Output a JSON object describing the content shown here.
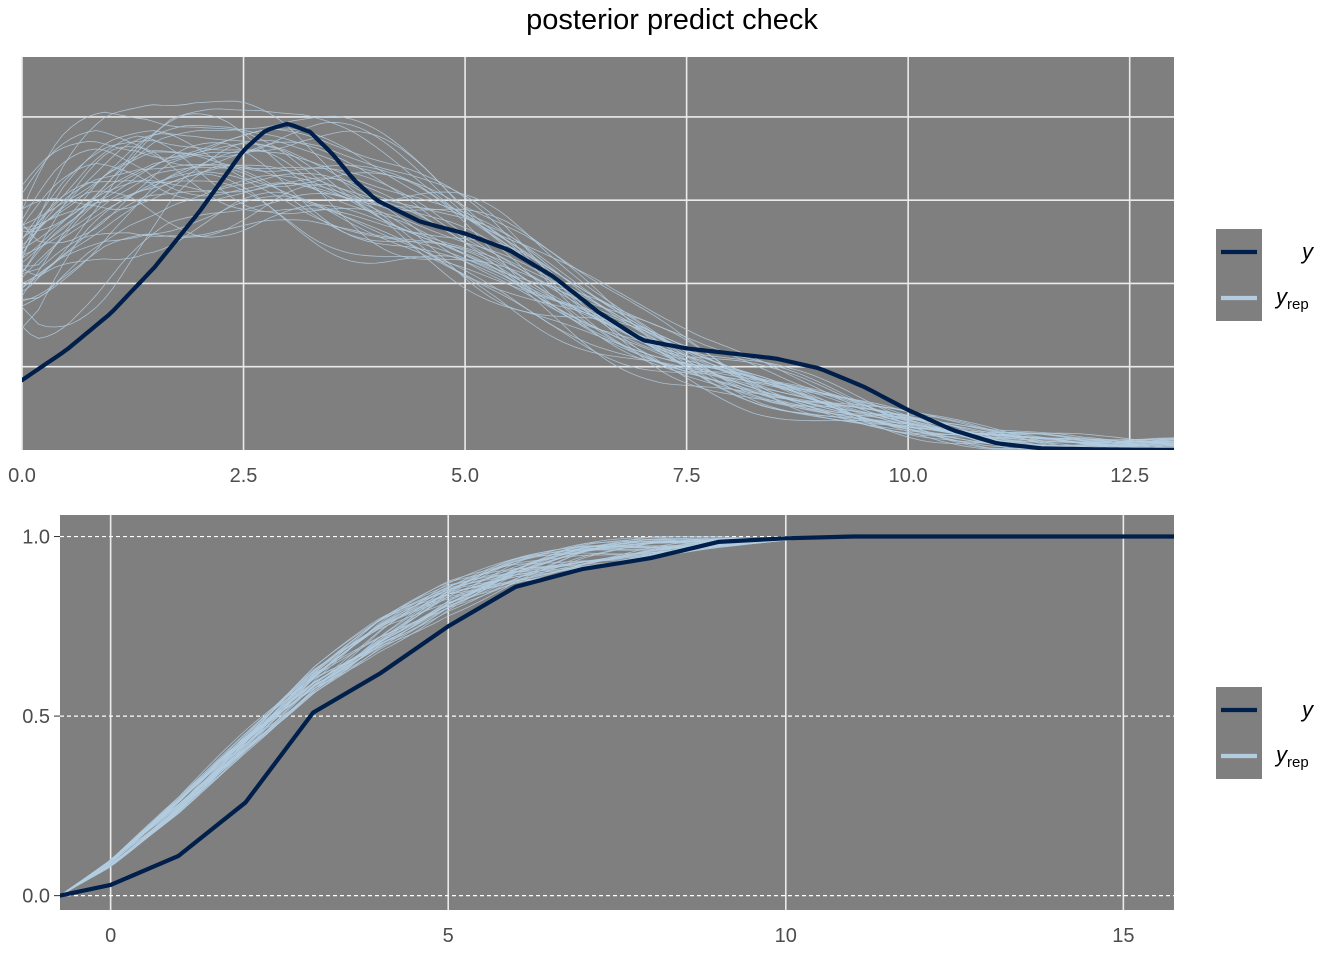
{
  "title": "posterior predict check",
  "colors": {
    "panel_bg": "#7f7f7f",
    "y": "#011f4b",
    "yrep": "#b3cde0",
    "grid": "#ebebeb"
  },
  "chart_data": [
    {
      "type": "line",
      "subtype": "density overlay",
      "xlim": [
        0,
        13
      ],
      "ylim": [
        0,
        0.236
      ],
      "x_ticks": [
        "0.0",
        "2.5",
        "5.0",
        "7.5",
        "10.0",
        "12.5"
      ],
      "x_tick_values": [
        0,
        2.5,
        5,
        7.5,
        10,
        12.5
      ],
      "y_tick_labels_shown": false,
      "grid": true,
      "legend": {
        "position": "right",
        "entries": [
          {
            "label": "y",
            "sub": ""
          },
          {
            "label": "y",
            "sub": "rep"
          }
        ]
      },
      "series": [
        {
          "name": "y",
          "x": [
            0,
            0.5,
            1,
            1.5,
            2,
            2.5,
            2.75,
            3,
            3.25,
            3.5,
            3.75,
            4,
            4.5,
            5,
            5.5,
            6,
            6.5,
            7,
            7.5,
            8,
            8.5,
            9,
            9.5,
            10,
            10.5,
            11,
            11.5,
            12,
            12.5,
            13
          ],
          "y": [
            0.042,
            0.06,
            0.082,
            0.11,
            0.143,
            0.18,
            0.192,
            0.196,
            0.191,
            0.178,
            0.162,
            0.15,
            0.137,
            0.13,
            0.12,
            0.104,
            0.083,
            0.066,
            0.061,
            0.058,
            0.055,
            0.049,
            0.038,
            0.024,
            0.012,
            0.004,
            0.001,
            0.0005,
            0.0002,
            0.0001
          ]
        },
        {
          "name": "y_rep",
          "draws": 40,
          "x": [
            0,
            0.5,
            1,
            1.5,
            2,
            2.5,
            3,
            3.5,
            4,
            4.5,
            5,
            5.5,
            6,
            6.5,
            7,
            7.5,
            8,
            8.5,
            9,
            9.5,
            10,
            10.5,
            11,
            11.5,
            12,
            12.5,
            13
          ],
          "mean": [
            0.11,
            0.135,
            0.155,
            0.168,
            0.172,
            0.172,
            0.168,
            0.16,
            0.15,
            0.14,
            0.127,
            0.113,
            0.097,
            0.082,
            0.068,
            0.055,
            0.045,
            0.036,
            0.029,
            0.022,
            0.016,
            0.011,
            0.007,
            0.005,
            0.003,
            0.003,
            0.003
          ],
          "spread": 0.025,
          "seed": 7
        }
      ]
    },
    {
      "type": "line",
      "subtype": "ecdf overlay",
      "xlim": [
        -0.75,
        15.75
      ],
      "ylim": [
        -0.04,
        1.06
      ],
      "x_ticks": [
        "0",
        "5",
        "10",
        "15"
      ],
      "x_tick_values": [
        0,
        5,
        10,
        15
      ],
      "y_ticks": [
        "0.0",
        "0.5",
        "1.0"
      ],
      "y_tick_values": [
        0,
        0.5,
        1
      ],
      "grid": true,
      "legend": {
        "position": "right",
        "entries": [
          {
            "label": "y",
            "sub": ""
          },
          {
            "label": "y",
            "sub": "rep"
          }
        ]
      },
      "series": [
        {
          "name": "y",
          "x": [
            -0.75,
            0,
            1,
            2,
            3,
            4,
            5,
            6,
            7,
            8,
            9,
            10,
            11,
            12,
            13,
            14,
            15,
            15.75
          ],
          "y": [
            0,
            0.03,
            0.11,
            0.26,
            0.51,
            0.62,
            0.75,
            0.86,
            0.91,
            0.94,
            0.985,
            0.995,
            1,
            1,
            1,
            1,
            1,
            1
          ]
        },
        {
          "name": "y_rep",
          "draws": 40,
          "x": [
            -0.75,
            0,
            1,
            2,
            3,
            4,
            5,
            6,
            7,
            8,
            9,
            10,
            11,
            12,
            13,
            14,
            15,
            15.75
          ],
          "mean": [
            0,
            0.09,
            0.25,
            0.43,
            0.6,
            0.73,
            0.83,
            0.9,
            0.945,
            0.97,
            0.985,
            0.993,
            0.997,
            1,
            1,
            1,
            1,
            1
          ],
          "spread": 0.045,
          "seed": 11
        }
      ]
    }
  ]
}
